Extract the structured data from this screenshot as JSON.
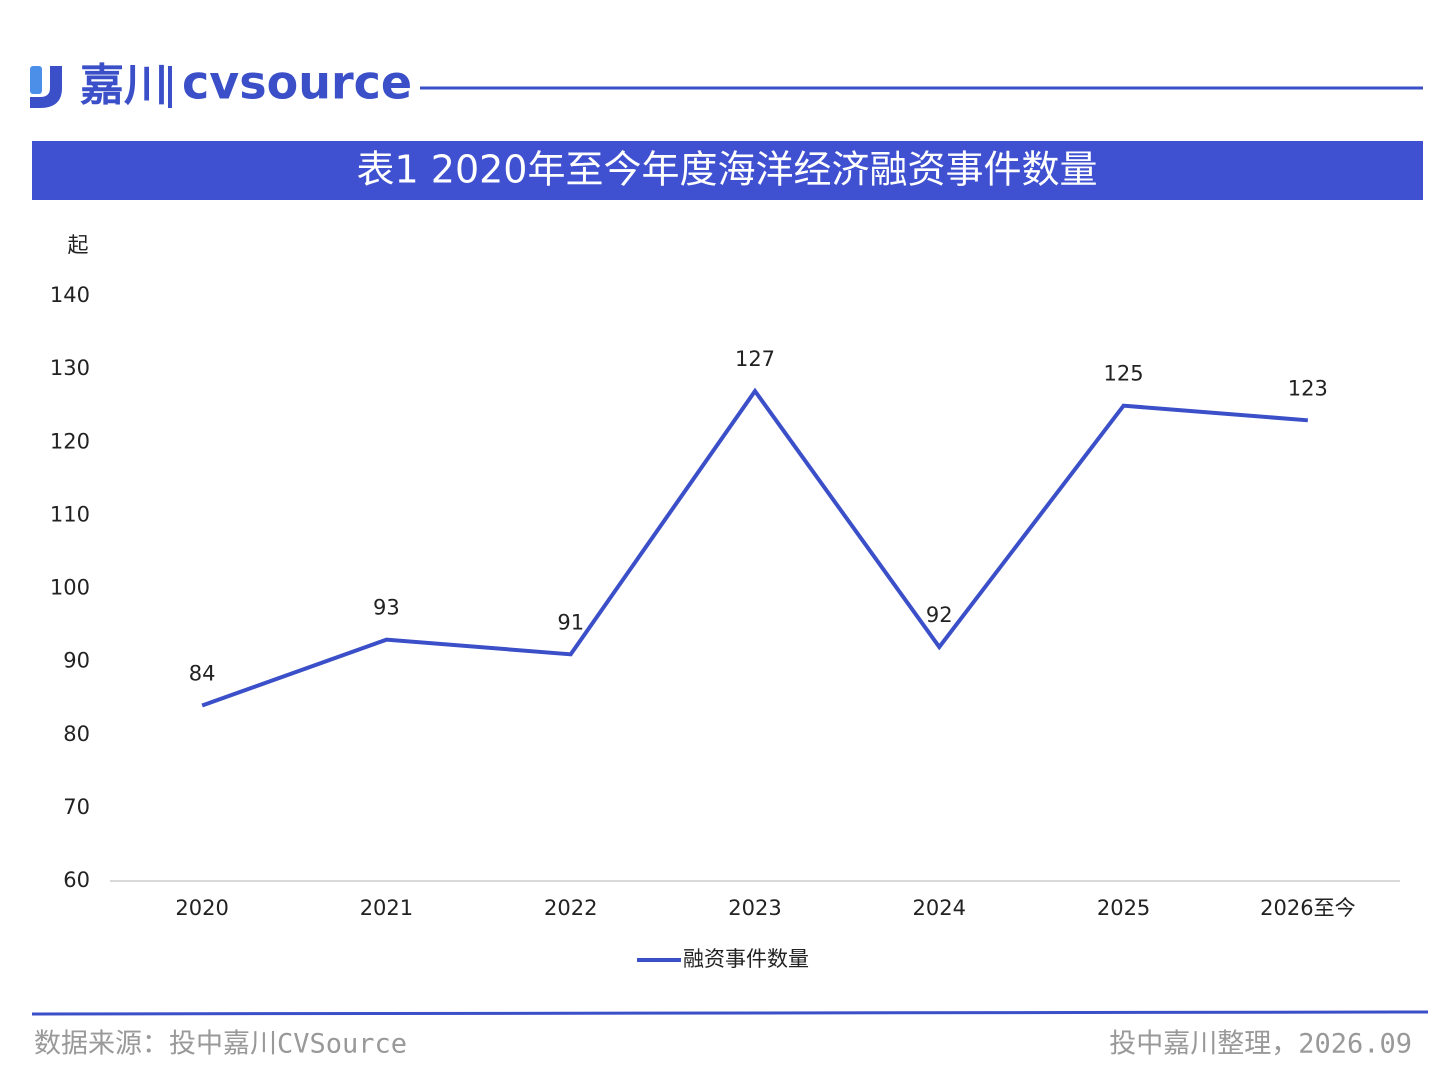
{
  "logo": {
    "name": "嘉川",
    "brand": "cvsource"
  },
  "chart_data": {
    "type": "line",
    "title": "表1 2020年至今年度海洋经济融资事件数量",
    "y_label": "起",
    "categories": [
      "2020",
      "2021",
      "2022",
      "2023",
      "2024",
      "2025",
      "2026至今"
    ],
    "series": [
      {
        "name": "融资事件数量",
        "color": "#3a4fc8",
        "values": [
          84,
          93,
          91,
          127,
          92,
          125,
          123
        ]
      }
    ],
    "ylim": [
      60,
      140
    ],
    "yticks": [
      60,
      70,
      80,
      90,
      100,
      110,
      120,
      130,
      140
    ],
    "grid": false,
    "legend": "bottom"
  },
  "footer": {
    "source": "数据来源：投中嘉川CVSource",
    "note": "投中嘉川整理，2026.09"
  }
}
